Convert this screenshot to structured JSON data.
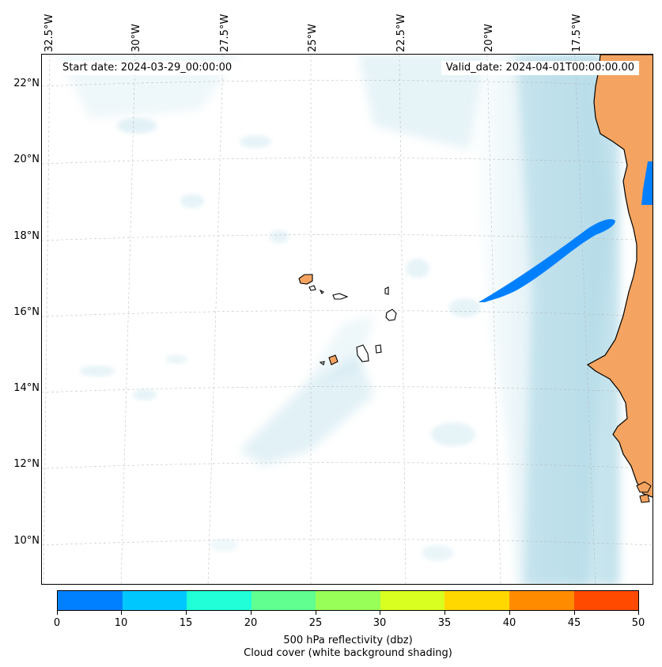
{
  "map": {
    "start_date": "Start date: 2024-03-29_00:00:00",
    "valid_date": "Valid_date: 2024-04-01T00:00:00.00",
    "lon_labels": [
      "32.5°W",
      "30°W",
      "27.5°W",
      "25°W",
      "22.5°W",
      "20°W",
      "17.5°W"
    ],
    "lat_labels": [
      "22°N",
      "20°N",
      "18°N",
      "16°N",
      "14°N",
      "12°N",
      "10°N"
    ],
    "land_color": "#f4a460",
    "cloud_color": "#add8e6",
    "reflectivity_color": "#0080ff"
  },
  "colorbar": {
    "ticks": [
      "0",
      "10",
      "15",
      "20",
      "25",
      "30",
      "35",
      "40",
      "45",
      "50"
    ],
    "colors": [
      "#0080ff",
      "#00c8ff",
      "#20ffd8",
      "#60ff90",
      "#98ff58",
      "#d8ff20",
      "#ffd800",
      "#ff8c00",
      "#ff4a00"
    ],
    "title_line1": "500 hPa reflectivity (dbz)",
    "title_line2": "Cloud cover (white background shading)"
  }
}
